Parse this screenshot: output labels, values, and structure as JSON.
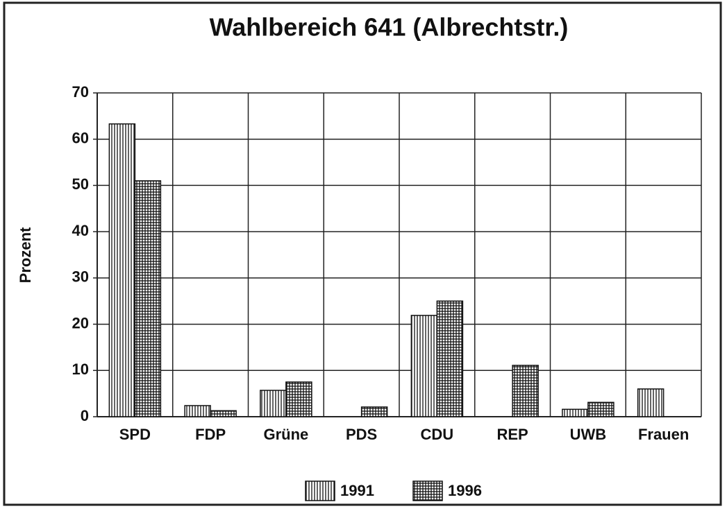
{
  "chart_data": {
    "type": "bar",
    "title": "Wahlbereich 641 (Albrechtstr.)",
    "y_label": "Prozent",
    "categories": [
      "SPD",
      "FDP",
      "Grüne",
      "PDS",
      "CDU",
      "REP",
      "UWB",
      "Frauen"
    ],
    "series": [
      {
        "name": "1991",
        "color": "#111111",
        "pattern": "vertical-lines",
        "values": [
          63.3,
          2.4,
          5.7,
          null,
          21.9,
          null,
          1.6,
          6.0
        ]
      },
      {
        "name": "1996",
        "color": "#111111",
        "pattern": "grid",
        "values": [
          51.0,
          1.3,
          7.5,
          2.1,
          25.0,
          11.1,
          3.1,
          null
        ]
      }
    ],
    "ylim": [
      0,
      70
    ],
    "yticks": [
      0,
      10,
      20,
      30,
      40,
      50,
      60,
      70
    ],
    "grid": true,
    "legend": "bottom"
  }
}
